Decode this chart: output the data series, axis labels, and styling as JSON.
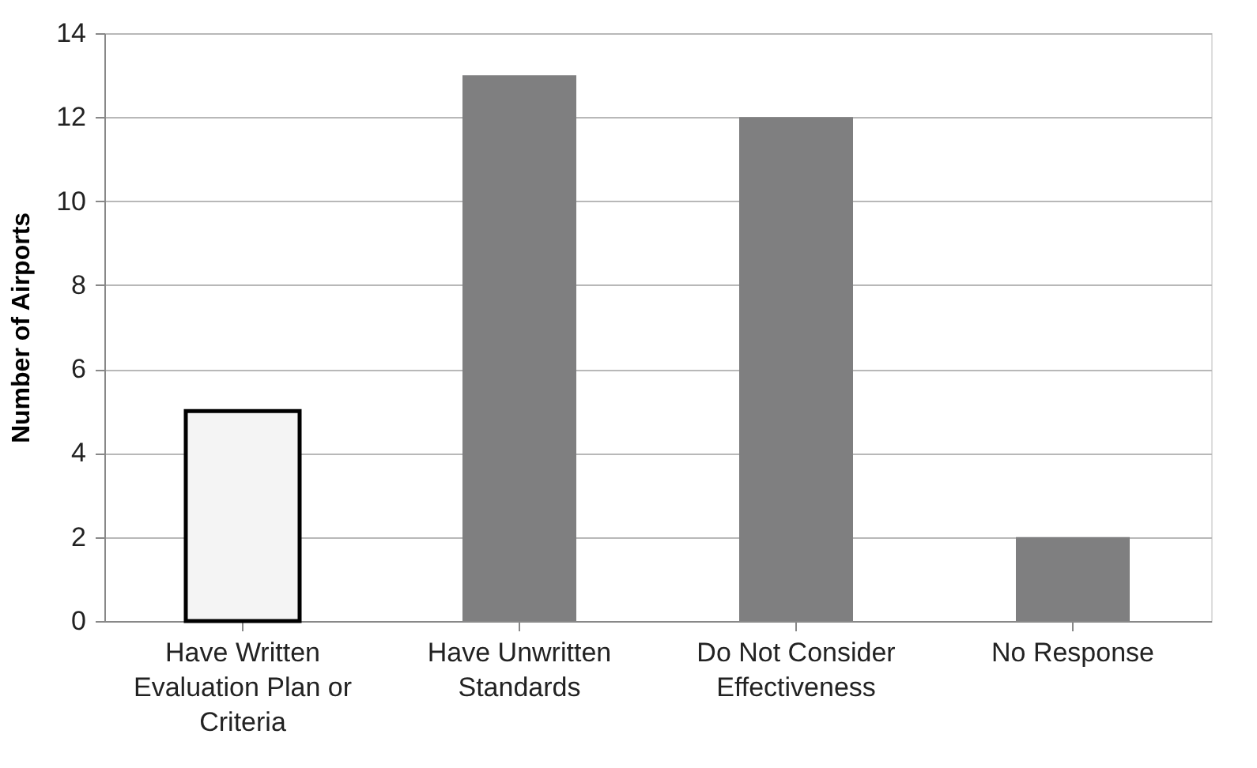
{
  "chart_data": {
    "type": "bar",
    "ylabel": "Number of Airports",
    "categories": [
      "Have Written Evaluation Plan or Criteria",
      "Have Unwritten Standards",
      "Do Not Consider Effectiveness",
      "No Response"
    ],
    "values": [
      5,
      13,
      12,
      2
    ],
    "colors": [
      "#f4f4f4",
      "#7f7f80",
      "#7f7f80",
      "#7f7f80"
    ],
    "ylim": [
      0,
      14
    ],
    "yticks": [
      0,
      2,
      4,
      6,
      8,
      10,
      12,
      14
    ],
    "grid": "y"
  }
}
